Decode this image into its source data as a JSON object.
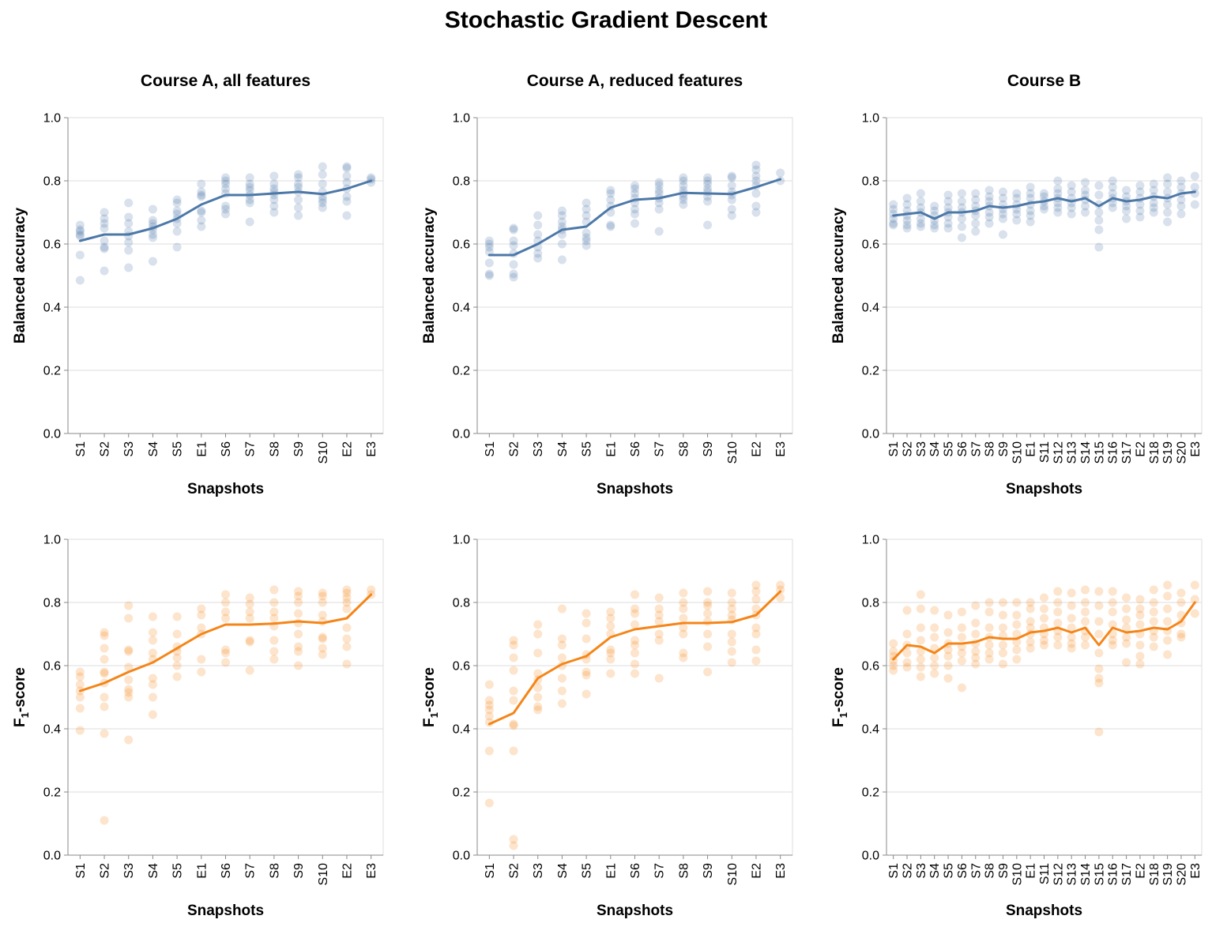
{
  "title": "Stochastic Gradient Descent",
  "colors": {
    "accuracy": "#4c78a8",
    "f1": "#f58518"
  },
  "chart_data": [
    {
      "type": "line",
      "title": "Course A, all features",
      "xlabel": "Snapshots",
      "ylabel": "Balanced accuracy",
      "ylim": [
        0,
        1
      ],
      "yticks": [
        "0.0",
        "0.2",
        "0.4",
        "0.6",
        "0.8",
        "1.0"
      ],
      "categories": [
        "S1",
        "S2",
        "S3",
        "S4",
        "S5",
        "E1",
        "S6",
        "S7",
        "S8",
        "S9",
        "S10",
        "E2",
        "E3"
      ],
      "series": [
        {
          "values": [
            0.61,
            0.63,
            0.63,
            0.65,
            0.68,
            0.725,
            0.755,
            0.755,
            0.76,
            0.765,
            0.758,
            0.775,
            0.8
          ]
        }
      ],
      "points": [
        [
          0.66,
          0.645,
          0.64,
          0.63,
          0.625,
          0.565,
          0.485
        ],
        [
          0.7,
          0.68,
          0.665,
          0.65,
          0.61,
          0.59,
          0.585,
          0.515
        ],
        [
          0.73,
          0.685,
          0.665,
          0.64,
          0.625,
          0.605,
          0.58,
          0.525
        ],
        [
          0.71,
          0.675,
          0.665,
          0.655,
          0.645,
          0.63,
          0.62,
          0.545
        ],
        [
          0.74,
          0.73,
          0.705,
          0.695,
          0.68,
          0.665,
          0.64,
          0.59
        ],
        [
          0.79,
          0.765,
          0.755,
          0.75,
          0.705,
          0.7,
          0.675,
          0.655
        ],
        [
          0.81,
          0.8,
          0.79,
          0.775,
          0.76,
          0.72,
          0.71,
          0.695
        ],
        [
          0.81,
          0.79,
          0.78,
          0.77,
          0.755,
          0.74,
          0.73,
          0.67
        ],
        [
          0.815,
          0.79,
          0.775,
          0.765,
          0.755,
          0.74,
          0.72,
          0.7
        ],
        [
          0.82,
          0.81,
          0.79,
          0.78,
          0.765,
          0.74,
          0.715,
          0.69
        ],
        [
          0.845,
          0.82,
          0.79,
          0.765,
          0.75,
          0.74,
          0.73,
          0.715
        ],
        [
          0.845,
          0.84,
          0.815,
          0.795,
          0.775,
          0.75,
          0.735,
          0.69
        ],
        [
          0.81,
          0.805,
          0.795
        ]
      ]
    },
    {
      "type": "line",
      "title": "Course A, reduced features",
      "xlabel": "Snapshots",
      "ylabel": "Balanced accuracy",
      "ylim": [
        0,
        1
      ],
      "yticks": [
        "0.0",
        "0.2",
        "0.4",
        "0.6",
        "0.8",
        "1.0"
      ],
      "categories": [
        "S1",
        "S2",
        "S3",
        "S4",
        "S5",
        "E1",
        "S6",
        "S7",
        "S8",
        "S9",
        "S10",
        "E2",
        "E3"
      ],
      "series": [
        {
          "values": [
            0.565,
            0.565,
            0.6,
            0.645,
            0.655,
            0.715,
            0.74,
            0.745,
            0.762,
            0.76,
            0.758,
            0.78,
            0.805
          ]
        }
      ],
      "points": [
        [
          0.61,
          0.6,
          0.59,
          0.575,
          0.54,
          0.505,
          0.5
        ],
        [
          0.65,
          0.645,
          0.61,
          0.595,
          0.57,
          0.535,
          0.505,
          0.495
        ],
        [
          0.69,
          0.66,
          0.63,
          0.61,
          0.59,
          0.57,
          0.555
        ],
        [
          0.705,
          0.69,
          0.67,
          0.655,
          0.645,
          0.63,
          0.6,
          0.55
        ],
        [
          0.73,
          0.71,
          0.69,
          0.67,
          0.635,
          0.62,
          0.61,
          0.595
        ],
        [
          0.77,
          0.76,
          0.74,
          0.72,
          0.7,
          0.66,
          0.655
        ],
        [
          0.785,
          0.775,
          0.76,
          0.745,
          0.73,
          0.71,
          0.695,
          0.665
        ],
        [
          0.795,
          0.785,
          0.77,
          0.76,
          0.745,
          0.73,
          0.71,
          0.64
        ],
        [
          0.81,
          0.8,
          0.785,
          0.77,
          0.76,
          0.75,
          0.74,
          0.725
        ],
        [
          0.81,
          0.8,
          0.79,
          0.775,
          0.765,
          0.75,
          0.735,
          0.66
        ],
        [
          0.815,
          0.81,
          0.785,
          0.765,
          0.755,
          0.74,
          0.71,
          0.69
        ],
        [
          0.85,
          0.835,
          0.815,
          0.8,
          0.785,
          0.76,
          0.72,
          0.7
        ],
        [
          0.825,
          0.8
        ]
      ]
    },
    {
      "type": "line",
      "title": "Course B",
      "xlabel": "Snapshots",
      "ylabel": "Balanced accuracy",
      "ylim": [
        0,
        1
      ],
      "yticks": [
        "0.0",
        "0.2",
        "0.4",
        "0.6",
        "0.8",
        "1.0"
      ],
      "categories": [
        "S1",
        "S2",
        "S3",
        "S4",
        "S5",
        "S6",
        "S7",
        "S8",
        "S9",
        "S10",
        "E1",
        "S11",
        "S12",
        "S13",
        "S14",
        "S15",
        "S16",
        "S17",
        "E2",
        "S18",
        "S19",
        "S20",
        "E3"
      ],
      "series": [
        {
          "values": [
            0.69,
            0.695,
            0.7,
            0.68,
            0.7,
            0.7,
            0.705,
            0.72,
            0.715,
            0.72,
            0.73,
            0.735,
            0.745,
            0.735,
            0.745,
            0.72,
            0.745,
            0.735,
            0.74,
            0.75,
            0.745,
            0.76,
            0.765
          ]
        }
      ],
      "points": [
        [
          0.725,
          0.71,
          0.695,
          0.68,
          0.665,
          0.66
        ],
        [
          0.745,
          0.725,
          0.705,
          0.69,
          0.675,
          0.66,
          0.65
        ],
        [
          0.76,
          0.735,
          0.715,
          0.7,
          0.68,
          0.665,
          0.655
        ],
        [
          0.72,
          0.705,
          0.69,
          0.675,
          0.66,
          0.65
        ],
        [
          0.755,
          0.735,
          0.715,
          0.7,
          0.685,
          0.665,
          0.65
        ],
        [
          0.76,
          0.735,
          0.715,
          0.7,
          0.68,
          0.655,
          0.62
        ],
        [
          0.76,
          0.74,
          0.72,
          0.705,
          0.69,
          0.665,
          0.64
        ],
        [
          0.77,
          0.75,
          0.735,
          0.72,
          0.7,
          0.685,
          0.665
        ],
        [
          0.765,
          0.745,
          0.725,
          0.71,
          0.695,
          0.68,
          0.63
        ],
        [
          0.76,
          0.745,
          0.725,
          0.71,
          0.695,
          0.675
        ],
        [
          0.78,
          0.76,
          0.745,
          0.725,
          0.705,
          0.69,
          0.67
        ],
        [
          0.76,
          0.75,
          0.735,
          0.72,
          0.71
        ],
        [
          0.8,
          0.775,
          0.76,
          0.745,
          0.73,
          0.715,
          0.7
        ],
        [
          0.785,
          0.765,
          0.745,
          0.73,
          0.715,
          0.695
        ],
        [
          0.795,
          0.77,
          0.755,
          0.74,
          0.72,
          0.7
        ],
        [
          0.785,
          0.755,
          0.725,
          0.7,
          0.675,
          0.645,
          0.59
        ],
        [
          0.8,
          0.78,
          0.76,
          0.745,
          0.73,
          0.715
        ],
        [
          0.77,
          0.75,
          0.735,
          0.72,
          0.705,
          0.68
        ],
        [
          0.785,
          0.765,
          0.745,
          0.725,
          0.705,
          0.685
        ],
        [
          0.79,
          0.77,
          0.75,
          0.73,
          0.715,
          0.7
        ],
        [
          0.81,
          0.79,
          0.765,
          0.745,
          0.725,
          0.7,
          0.67
        ],
        [
          0.8,
          0.78,
          0.76,
          0.74,
          0.72,
          0.695
        ],
        [
          0.815,
          0.78,
          0.76,
          0.725
        ]
      ]
    },
    {
      "type": "line",
      "title": "",
      "xlabel": "Snapshots",
      "ylabel": "F",
      "ylabel_subscript": "1",
      "ylabel_suffix": "-score",
      "ylim": [
        0,
        1
      ],
      "yticks": [
        "0.0",
        "0.2",
        "0.4",
        "0.6",
        "0.8",
        "1.0"
      ],
      "categories": [
        "S1",
        "S2",
        "S3",
        "S4",
        "S5",
        "E1",
        "S6",
        "S7",
        "S8",
        "S9",
        "S10",
        "E2",
        "E3"
      ],
      "series": [
        {
          "values": [
            0.52,
            0.545,
            0.58,
            0.61,
            0.655,
            0.7,
            0.73,
            0.73,
            0.733,
            0.74,
            0.735,
            0.75,
            0.825
          ]
        }
      ],
      "points": [
        [
          0.58,
          0.565,
          0.54,
          0.52,
          0.5,
          0.465,
          0.395
        ],
        [
          0.705,
          0.695,
          0.655,
          0.62,
          0.58,
          0.575,
          0.545,
          0.5,
          0.47,
          0.385,
          0.11
        ],
        [
          0.79,
          0.75,
          0.65,
          0.645,
          0.595,
          0.555,
          0.525,
          0.515,
          0.5,
          0.365
        ],
        [
          0.755,
          0.705,
          0.68,
          0.64,
          0.62,
          0.56,
          0.54,
          0.5,
          0.445
        ],
        [
          0.755,
          0.7,
          0.66,
          0.645,
          0.625,
          0.6,
          0.565
        ],
        [
          0.78,
          0.76,
          0.72,
          0.7,
          0.62,
          0.58
        ],
        [
          0.825,
          0.8,
          0.77,
          0.75,
          0.65,
          0.64,
          0.61
        ],
        [
          0.815,
          0.795,
          0.77,
          0.75,
          0.68,
          0.675,
          0.585
        ],
        [
          0.84,
          0.8,
          0.77,
          0.75,
          0.725,
          0.68,
          0.645,
          0.62
        ],
        [
          0.835,
          0.82,
          0.8,
          0.765,
          0.735,
          0.7,
          0.66,
          0.645,
          0.6
        ],
        [
          0.83,
          0.82,
          0.8,
          0.76,
          0.74,
          0.69,
          0.685,
          0.655,
          0.635
        ],
        [
          0.84,
          0.83,
          0.815,
          0.8,
          0.78,
          0.72,
          0.685,
          0.66,
          0.605
        ],
        [
          0.84,
          0.825
        ]
      ]
    },
    {
      "type": "line",
      "title": "",
      "xlabel": "Snapshots",
      "ylabel": "F",
      "ylabel_subscript": "1",
      "ylabel_suffix": "-score",
      "ylim": [
        0,
        1
      ],
      "yticks": [
        "0.0",
        "0.2",
        "0.4",
        "0.6",
        "0.8",
        "1.0"
      ],
      "categories": [
        "S1",
        "S2",
        "S3",
        "S4",
        "S5",
        "E1",
        "S6",
        "S7",
        "S8",
        "S9",
        "S10",
        "E2",
        "E3"
      ],
      "series": [
        {
          "values": [
            0.415,
            0.45,
            0.56,
            0.605,
            0.63,
            0.69,
            0.715,
            0.725,
            0.735,
            0.735,
            0.738,
            0.76,
            0.835
          ]
        }
      ],
      "points": [
        [
          0.54,
          0.49,
          0.475,
          0.46,
          0.44,
          0.42,
          0.33,
          0.165
        ],
        [
          0.68,
          0.665,
          0.625,
          0.585,
          0.52,
          0.49,
          0.415,
          0.41,
          0.33,
          0.05,
          0.03
        ],
        [
          0.73,
          0.7,
          0.64,
          0.575,
          0.555,
          0.53,
          0.5,
          0.47,
          0.46
        ],
        [
          0.78,
          0.685,
          0.665,
          0.625,
          0.6,
          0.56,
          0.52,
          0.48
        ],
        [
          0.765,
          0.735,
          0.685,
          0.635,
          0.62,
          0.58,
          0.57,
          0.51
        ],
        [
          0.77,
          0.75,
          0.725,
          0.7,
          0.65,
          0.64,
          0.62,
          0.575
        ],
        [
          0.825,
          0.78,
          0.765,
          0.73,
          0.68,
          0.665,
          0.64,
          0.605,
          0.575
        ],
        [
          0.815,
          0.78,
          0.76,
          0.74,
          0.7,
          0.68,
          0.56
        ],
        [
          0.83,
          0.8,
          0.78,
          0.75,
          0.72,
          0.7,
          0.64,
          0.625
        ],
        [
          0.835,
          0.8,
          0.79,
          0.765,
          0.74,
          0.7,
          0.66,
          0.58
        ],
        [
          0.83,
          0.8,
          0.78,
          0.76,
          0.745,
          0.7,
          0.675,
          0.645,
          0.61
        ],
        [
          0.855,
          0.835,
          0.81,
          0.78,
          0.76,
          0.72,
          0.7,
          0.65,
          0.615
        ],
        [
          0.855,
          0.84,
          0.815
        ]
      ]
    },
    {
      "type": "line",
      "title": "",
      "xlabel": "Snapshots",
      "ylabel": "F",
      "ylabel_subscript": "1",
      "ylabel_suffix": "-score",
      "ylim": [
        0,
        1
      ],
      "yticks": [
        "0.0",
        "0.2",
        "0.4",
        "0.6",
        "0.8",
        "1.0"
      ],
      "categories": [
        "S1",
        "S2",
        "S3",
        "S4",
        "S5",
        "S6",
        "S7",
        "S8",
        "S9",
        "S10",
        "E1",
        "S11",
        "S12",
        "S13",
        "S14",
        "S15",
        "S16",
        "S17",
        "E2",
        "S18",
        "S19",
        "S20",
        "E3"
      ],
      "series": [
        {
          "values": [
            0.62,
            0.665,
            0.66,
            0.64,
            0.67,
            0.67,
            0.675,
            0.69,
            0.685,
            0.685,
            0.705,
            0.71,
            0.72,
            0.705,
            0.72,
            0.665,
            0.72,
            0.705,
            0.71,
            0.72,
            0.715,
            0.74,
            0.8
          ]
        }
      ],
      "points": [
        [
          0.67,
          0.645,
          0.63,
          0.615,
          0.6,
          0.585
        ],
        [
          0.775,
          0.7,
          0.665,
          0.64,
          0.61,
          0.595
        ],
        [
          0.825,
          0.78,
          0.72,
          0.68,
          0.645,
          0.62,
          0.595,
          0.565
        ],
        [
          0.775,
          0.72,
          0.69,
          0.655,
          0.625,
          0.6,
          0.575
        ],
        [
          0.76,
          0.705,
          0.67,
          0.65,
          0.63,
          0.6,
          0.56
        ],
        [
          0.77,
          0.72,
          0.69,
          0.66,
          0.64,
          0.615,
          0.53
        ],
        [
          0.79,
          0.735,
          0.7,
          0.67,
          0.645,
          0.625,
          0.605
        ],
        [
          0.8,
          0.77,
          0.72,
          0.69,
          0.665,
          0.64,
          0.62
        ],
        [
          0.8,
          0.76,
          0.72,
          0.695,
          0.665,
          0.64,
          0.605
        ],
        [
          0.8,
          0.76,
          0.73,
          0.7,
          0.675,
          0.65,
          0.62
        ],
        [
          0.8,
          0.78,
          0.74,
          0.72,
          0.7,
          0.675,
          0.655
        ],
        [
          0.815,
          0.78,
          0.75,
          0.72,
          0.7,
          0.68,
          0.665
        ],
        [
          0.835,
          0.8,
          0.77,
          0.735,
          0.71,
          0.69,
          0.665
        ],
        [
          0.83,
          0.79,
          0.75,
          0.72,
          0.69,
          0.67,
          0.655
        ],
        [
          0.84,
          0.8,
          0.77,
          0.74,
          0.71,
          0.69,
          0.665
        ],
        [
          0.835,
          0.79,
          0.74,
          0.7,
          0.64,
          0.59,
          0.56,
          0.545,
          0.39
        ],
        [
          0.835,
          0.8,
          0.77,
          0.73,
          0.7,
          0.68,
          0.665
        ],
        [
          0.815,
          0.78,
          0.745,
          0.72,
          0.69,
          0.67,
          0.61
        ],
        [
          0.81,
          0.78,
          0.76,
          0.73,
          0.7,
          0.665,
          0.63,
          0.605
        ],
        [
          0.84,
          0.8,
          0.77,
          0.74,
          0.71,
          0.69,
          0.66
        ],
        [
          0.855,
          0.82,
          0.78,
          0.74,
          0.71,
          0.68,
          0.635
        ],
        [
          0.83,
          0.8,
          0.76,
          0.735,
          0.7,
          0.69
        ],
        [
          0.855,
          0.81,
          0.765
        ]
      ]
    }
  ]
}
